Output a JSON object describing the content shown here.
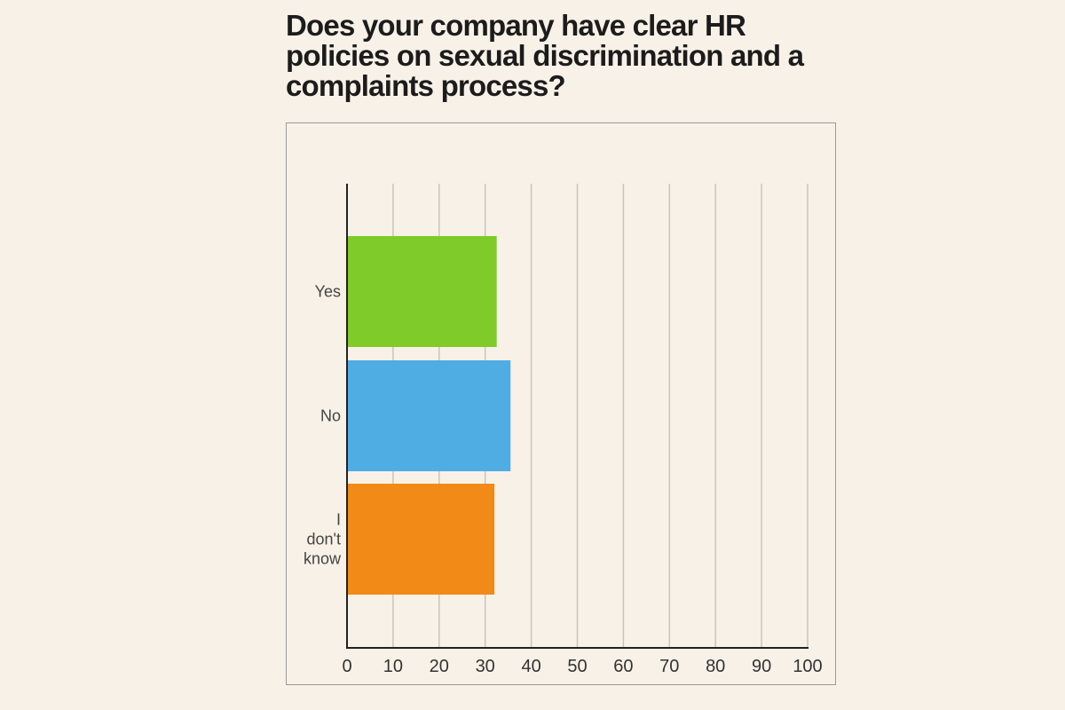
{
  "chart_data": {
    "type": "bar",
    "orientation": "horizontal",
    "title": "Does your company have clear HR policies on sexual discrimination and a complaints process?",
    "categories": [
      "Yes",
      "No",
      "I don't know"
    ],
    "values": [
      32.5,
      35.5,
      32
    ],
    "colors": [
      "#7ecb29",
      "#4fade3",
      "#f28a17"
    ],
    "xlim": [
      0,
      100
    ],
    "xticks": [
      0,
      10,
      20,
      30,
      40,
      50,
      60,
      70,
      80,
      90,
      100
    ],
    "grid": true,
    "gridline_color": "#c9c5bc",
    "axis_color": "#222222"
  }
}
